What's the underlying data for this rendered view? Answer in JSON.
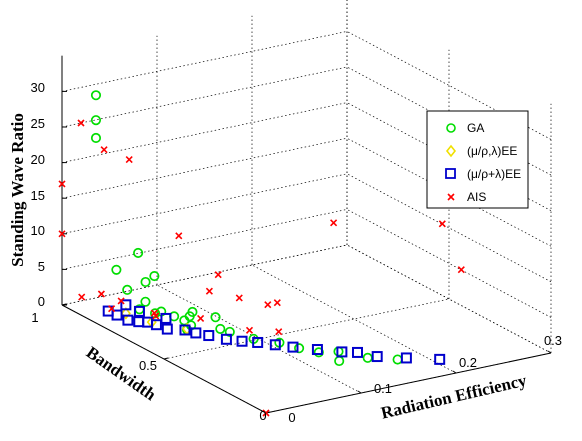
{
  "chart_data": {
    "type": "scatter",
    "dimensions": 3,
    "xlabel": "Radiation Efficiency",
    "ylabel": "Bandwidth",
    "zlabel": "Standing Wave Ratio",
    "xlim": [
      0,
      0.3
    ],
    "ylim": [
      0,
      1
    ],
    "zlim": [
      0,
      35
    ],
    "x_ticks": [
      "0",
      "0.1",
      "0.2",
      "0.3"
    ],
    "y_ticks": [
      "0",
      "0.5",
      "1"
    ],
    "z_ticks": [
      "0",
      "5",
      "10",
      "15",
      "20",
      "25",
      "30"
    ],
    "grid": true,
    "legend_position": "top-right",
    "legend": [
      "GA",
      "(μ/ρ,λ)EE",
      "(μ/ρ+λ)EE",
      "AIS"
    ],
    "series": [
      {
        "name": "GA",
        "marker": "circle",
        "color": "#00dd00",
        "points": [
          [
            0.01,
            0.88,
            31.0
          ],
          [
            0.01,
            0.88,
            27.5
          ],
          [
            0.01,
            0.88,
            25.0
          ],
          [
            0.02,
            0.72,
            11.0
          ],
          [
            0.01,
            0.78,
            8.0
          ],
          [
            0.015,
            0.75,
            5.5
          ],
          [
            0.05,
            0.78,
            6.0
          ],
          [
            0.045,
            0.8,
            5.0
          ],
          [
            0.032,
            0.74,
            3.5
          ],
          [
            0.04,
            0.7,
            2.5
          ],
          [
            0.045,
            0.66,
            2.3
          ],
          [
            0.06,
            0.64,
            2.8
          ],
          [
            0.05,
            0.6,
            1.8
          ],
          [
            0.07,
            0.55,
            1.5
          ],
          [
            0.06,
            0.68,
            1.0
          ],
          [
            0.04,
            0.73,
            1.8
          ],
          [
            0.03,
            0.76,
            2.2
          ],
          [
            0.05,
            0.62,
            0.9
          ],
          [
            0.08,
            0.55,
            0.8
          ],
          [
            0.1,
            0.4,
            1.0
          ],
          [
            0.11,
            0.35,
            0.7
          ],
          [
            0.12,
            0.3,
            0.6
          ],
          [
            0.09,
            0.48,
            0.6
          ],
          [
            0.12,
            0.2,
            0.9
          ],
          [
            0.13,
            0.25,
            1.2
          ],
          [
            0.15,
            0.2,
            0.5
          ],
          [
            0.16,
            0.1,
            1.5
          ],
          [
            0.08,
            0.62,
            1.8
          ],
          [
            0.07,
            0.7,
            1.0
          ]
        ]
      },
      {
        "name": "(μ/ρ,λ)EE",
        "marker": "diamond",
        "color": "#f0e000",
        "points": [
          [
            0.02,
            0.78,
            1.6
          ],
          [
            0.03,
            0.7,
            1.3
          ],
          [
            0.05,
            0.62,
            1.0
          ]
        ]
      },
      {
        "name": "(μ/ρ+λ)EE",
        "marker": "square",
        "color": "#0000cc",
        "points": [
          [
            0.02,
            0.78,
            2.8
          ],
          [
            0.01,
            0.82,
            1.6
          ],
          [
            0.015,
            0.8,
            1.2
          ],
          [
            0.02,
            0.77,
            0.8
          ],
          [
            0.025,
            0.74,
            0.9
          ],
          [
            0.03,
            0.72,
            1.0
          ],
          [
            0.035,
            0.7,
            0.8
          ],
          [
            0.04,
            0.67,
            0.5
          ],
          [
            0.05,
            0.63,
            0.7
          ],
          [
            0.055,
            0.6,
            0.6
          ],
          [
            0.06,
            0.56,
            0.7
          ],
          [
            0.07,
            0.52,
            0.5
          ],
          [
            0.08,
            0.49,
            0.4
          ],
          [
            0.09,
            0.46,
            0.4
          ],
          [
            0.1,
            0.42,
            0.4
          ],
          [
            0.11,
            0.38,
            0.4
          ],
          [
            0.125,
            0.33,
            0.4
          ],
          [
            0.14,
            0.28,
            0.4
          ],
          [
            0.15,
            0.25,
            0.5
          ],
          [
            0.16,
            0.2,
            0.4
          ],
          [
            0.18,
            0.15,
            0.4
          ],
          [
            0.2,
            0.08,
            0.7
          ],
          [
            0.03,
            0.76,
            1.9
          ],
          [
            0.045,
            0.7,
            1.4
          ]
        ]
      },
      {
        "name": "AIS",
        "marker": "x",
        "color": "#ff0000",
        "points": [
          [
            0.0,
            1.0,
            17.0
          ],
          [
            0.0,
            1.0,
            10.0
          ],
          [
            0.02,
            1.0,
            25.0
          ],
          [
            0.04,
            0.98,
            21.0
          ],
          [
            0.06,
            0.95,
            19.5
          ],
          [
            0.08,
            0.8,
            10.5
          ],
          [
            0.1,
            0.7,
            6.0
          ],
          [
            0.2,
            0.6,
            12.0
          ],
          [
            0.25,
            0.3,
            15.0
          ],
          [
            0.27,
            0.3,
            8.0
          ],
          [
            0.13,
            0.55,
            3.5
          ],
          [
            0.08,
            0.65,
            5.0
          ],
          [
            0.06,
            0.6,
            2.5
          ],
          [
            0.09,
            0.5,
            1.5
          ],
          [
            0.11,
            0.45,
            1.5
          ],
          [
            0.12,
            0.55,
            3.5
          ],
          [
            0.02,
            0.9,
            2.5
          ],
          [
            0.03,
            0.85,
            2.0
          ],
          [
            0.05,
            0.78,
            0.8
          ],
          [
            0.01,
            0.95,
            1.6
          ],
          [
            0.0,
            0.0,
            0.0
          ],
          [
            0.02,
            0.85,
            1.2
          ],
          [
            0.045,
            0.75,
            1.0
          ],
          [
            0.105,
            0.62,
            3.8
          ]
        ]
      }
    ]
  }
}
